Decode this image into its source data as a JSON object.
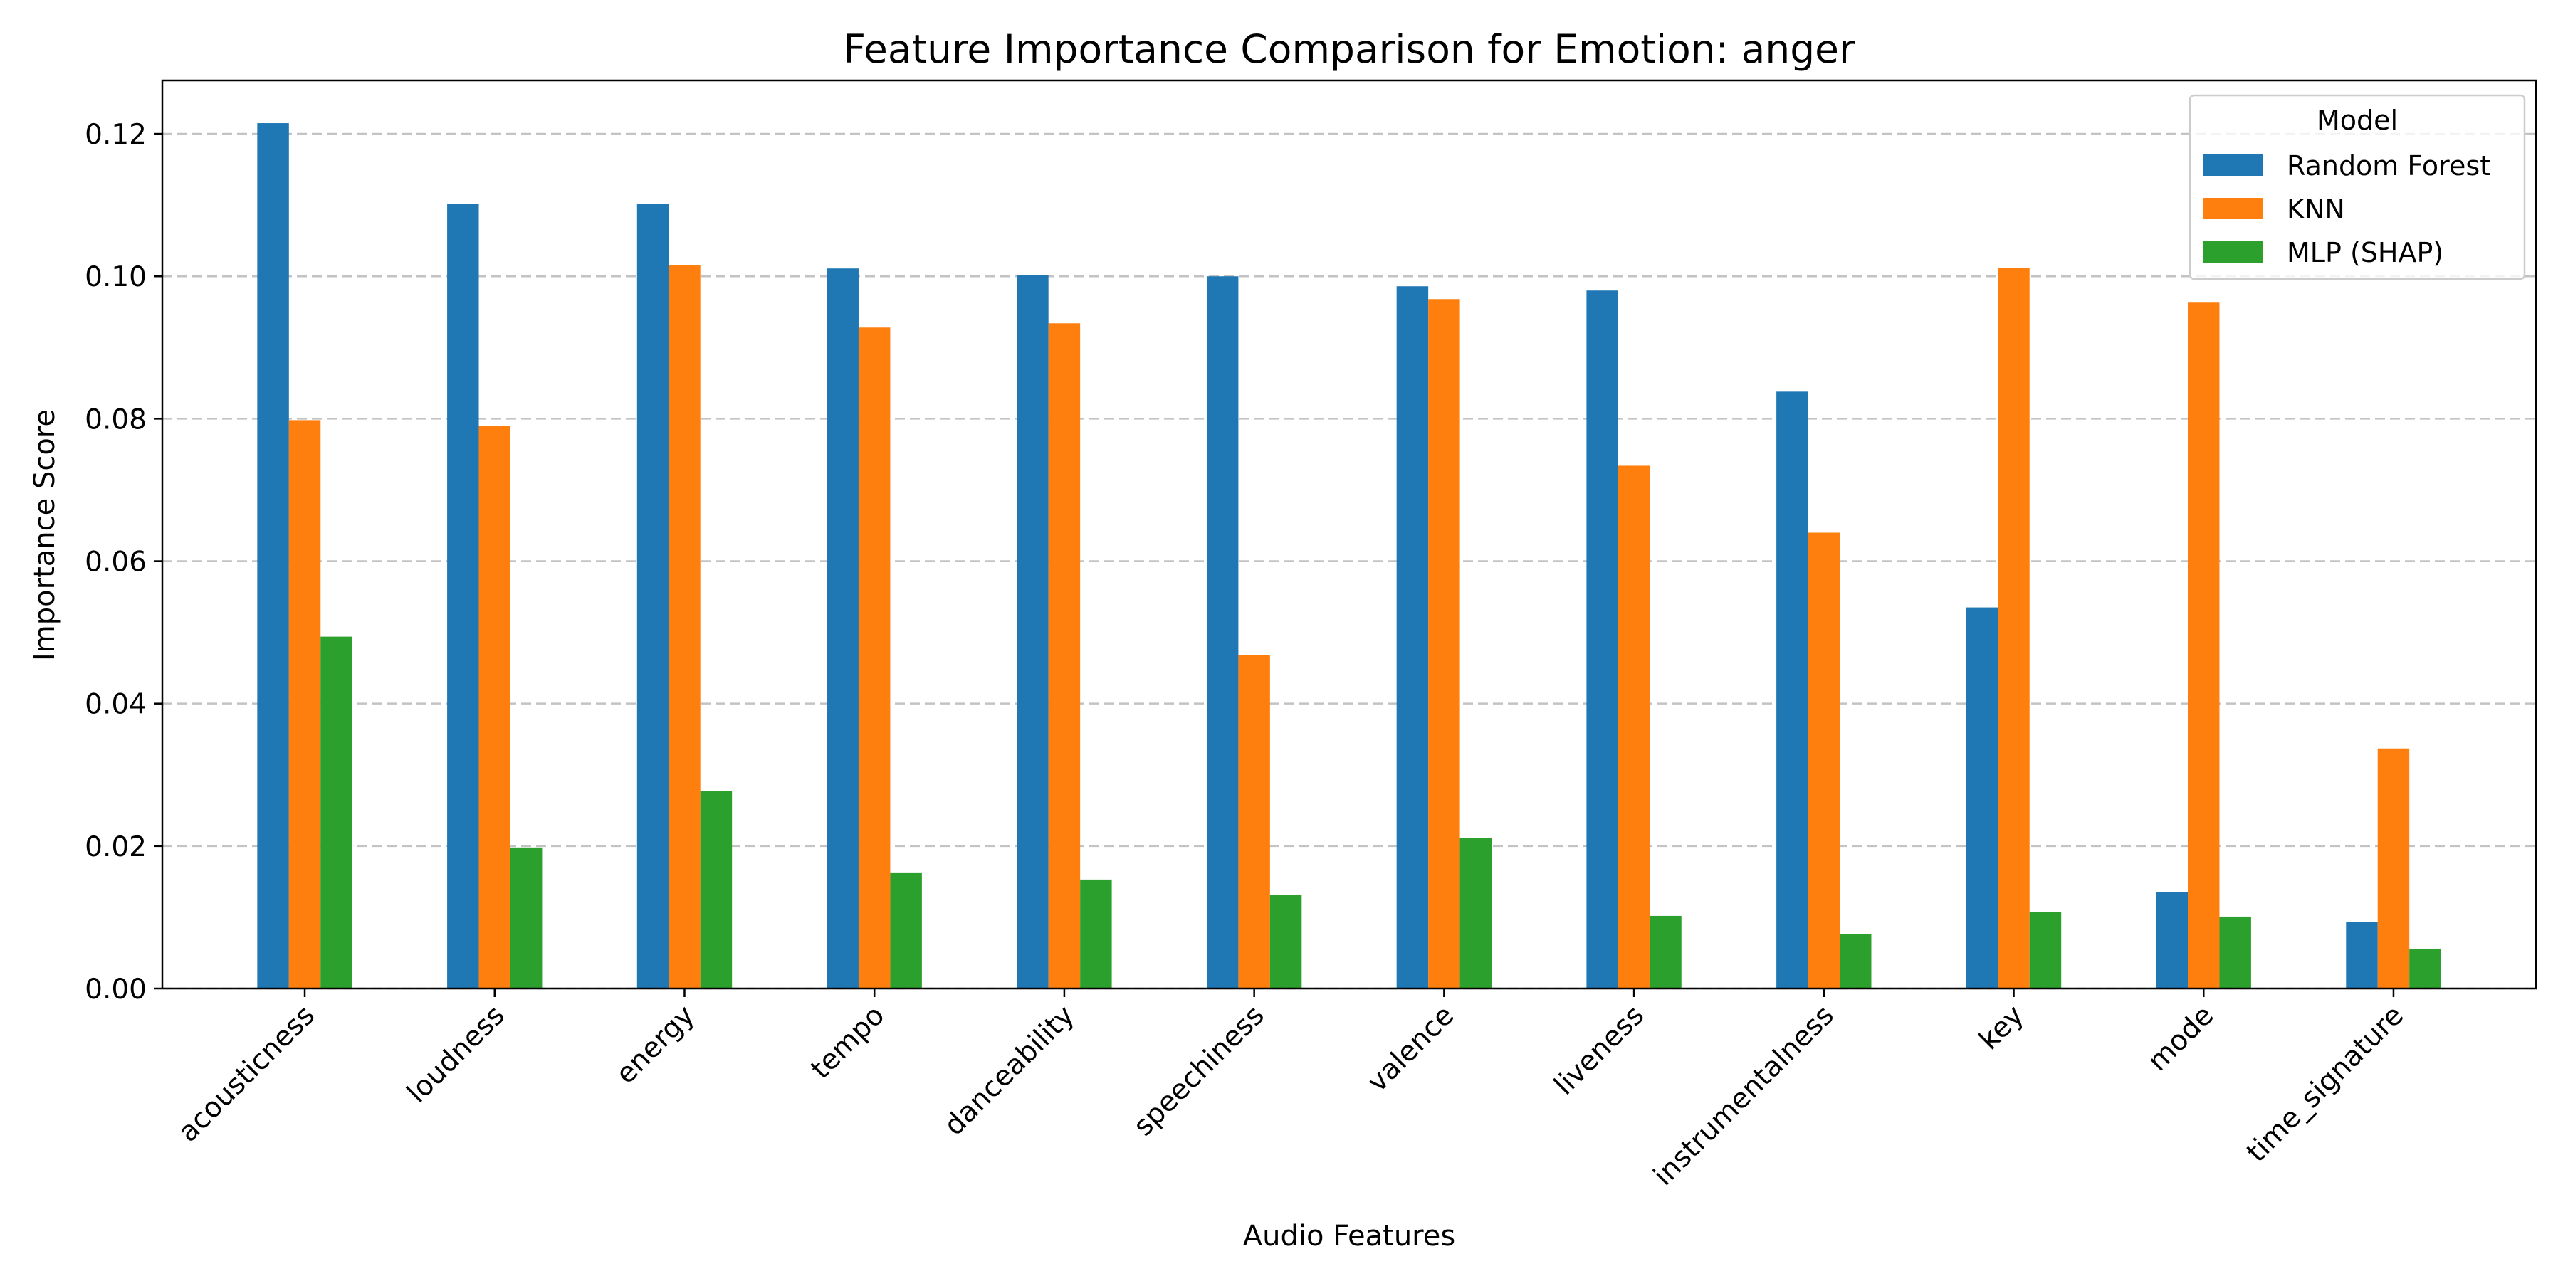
{
  "chart_data": {
    "type": "bar",
    "title": "Feature Importance Comparison for Emotion: anger",
    "xlabel": "Audio Features",
    "ylabel": "Importance Score",
    "ylim": [
      0,
      0.1275
    ],
    "yticks": [
      0.0,
      0.02,
      0.04,
      0.06,
      0.08,
      0.1,
      0.12
    ],
    "ytick_labels": [
      "0.00",
      "0.02",
      "0.04",
      "0.06",
      "0.08",
      "0.10",
      "0.12"
    ],
    "grid": "y, dashed",
    "legend": {
      "title": "Model",
      "placement": "top-right"
    },
    "categories": [
      "acousticness",
      "loudness",
      "energy",
      "tempo",
      "danceability",
      "speechiness",
      "valence",
      "liveness",
      "instrumentalness",
      "key",
      "mode",
      "time_signature"
    ],
    "series": [
      {
        "name": "Random Forest",
        "color": "#1f77b4",
        "values": [
          0.1215,
          0.1102,
          0.1102,
          0.1011,
          0.1002,
          0.1,
          0.0986,
          0.098,
          0.0838,
          0.0535,
          0.0135,
          0.0093
        ]
      },
      {
        "name": "KNN",
        "color": "#ff7f0e",
        "values": [
          0.0798,
          0.079,
          0.1016,
          0.0928,
          0.0934,
          0.0468,
          0.0968,
          0.0734,
          0.064,
          0.1012,
          0.0963,
          0.0337
        ]
      },
      {
        "name": "MLP (SHAP)",
        "color": "#2ca02c",
        "values": [
          0.0494,
          0.0198,
          0.0277,
          0.0163,
          0.0153,
          0.0131,
          0.0211,
          0.0102,
          0.0076,
          0.0107,
          0.0101,
          0.0056
        ]
      }
    ]
  }
}
